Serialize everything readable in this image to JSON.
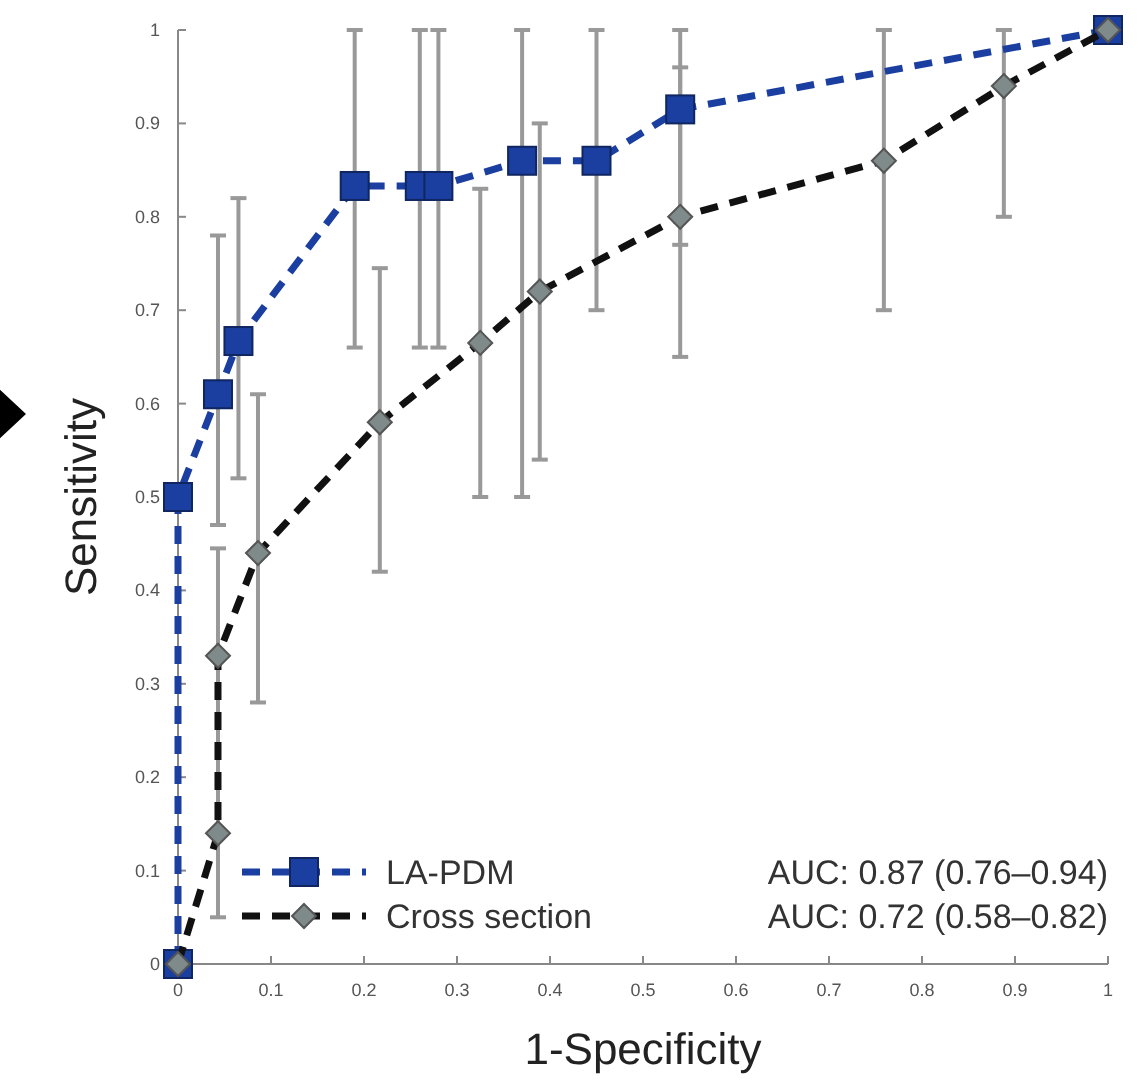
{
  "chart_data": {
    "type": "line",
    "xlabel": "1-Specificity",
    "ylabel": "Sensitivity",
    "xlim": [
      0,
      1
    ],
    "ylim": [
      0,
      1
    ],
    "xticks": [
      0,
      0.1,
      0.2,
      0.3,
      0.4,
      0.5,
      0.6,
      0.7,
      0.8,
      0.9,
      1
    ],
    "yticks": [
      0,
      0.1,
      0.2,
      0.3,
      0.4,
      0.5,
      0.6,
      0.7,
      0.8,
      0.9,
      1
    ],
    "grid": false,
    "legend": "bottom left",
    "line_style": "dashed",
    "series": [
      {
        "name": "LA-PDM",
        "color": "#1a3fa0",
        "marker": "square",
        "x": [
          0,
          0,
          0.043,
          0.065,
          0.19,
          0.26,
          0.28,
          0.37,
          0.45,
          0.54,
          1
        ],
        "values": [
          0,
          0.5,
          0.61,
          0.667,
          0.833,
          0.833,
          0.833,
          0.86,
          0.86,
          0.915,
          1
        ],
        "errors": [
          null,
          null,
          [
            0.47,
            0.78
          ],
          [
            0.52,
            0.82
          ],
          [
            0.66,
            1
          ],
          [
            0.66,
            1
          ],
          [
            0.66,
            1
          ],
          [
            0.5,
            1
          ],
          [
            0.7,
            1
          ],
          [
            0.77,
            0.96
          ],
          null
        ]
      },
      {
        "name": "Cross section",
        "color": "#111111",
        "marker": "diamond",
        "x": [
          0,
          0.043,
          0.043,
          0.086,
          0.217,
          0.325,
          0.389,
          0.54,
          0.759,
          0.888,
          1
        ],
        "values": [
          0,
          0.14,
          0.33,
          0.44,
          0.58,
          0.665,
          0.72,
          0.8,
          0.86,
          0.94,
          1
        ],
        "errors": [
          null,
          null,
          [
            0.05,
            0.445
          ],
          [
            0.28,
            0.61
          ],
          [
            0.42,
            0.745
          ],
          [
            0.5,
            0.83
          ],
          [
            0.54,
            0.9
          ],
          [
            0.65,
            1
          ],
          [
            0.7,
            1
          ],
          [
            0.8,
            1
          ],
          null
        ]
      }
    ],
    "annotations": [
      "AUC: 0.87 (0.76–0.94)",
      "AUC: 0.72 (0.58–0.82)"
    ]
  }
}
